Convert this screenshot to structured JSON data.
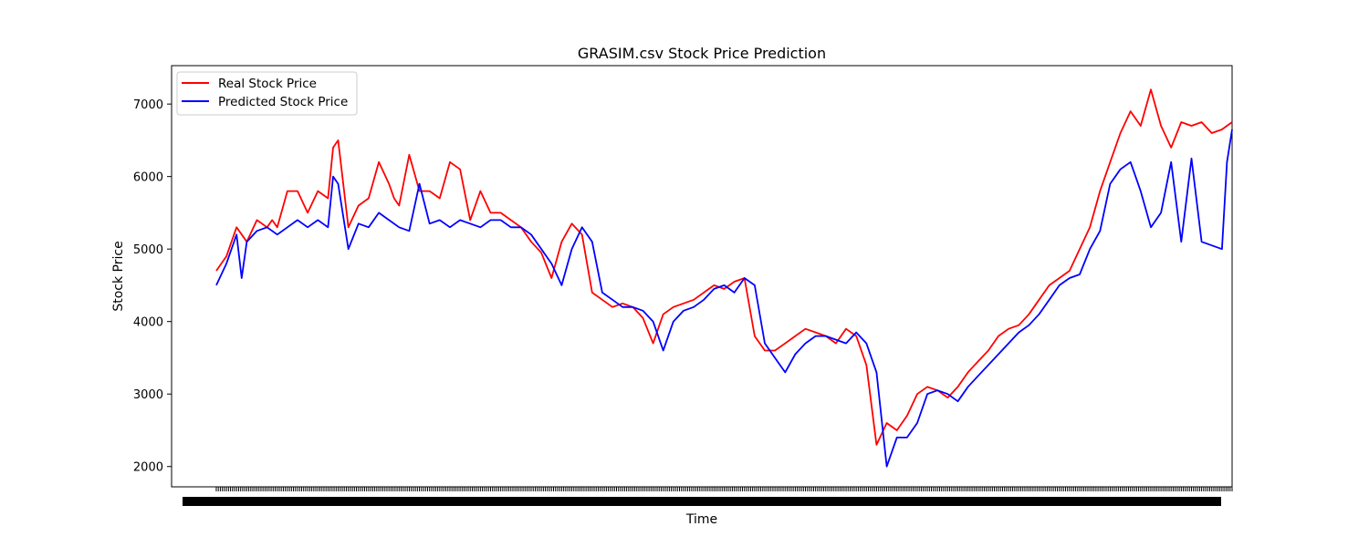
{
  "chart_data": {
    "type": "line",
    "title": "GRASIM.csv Stock Price Prediction",
    "xlabel": "Time",
    "ylabel": "Stock Price",
    "x_tick_labels_note": "",
    "ylim": [
      1720,
      7530
    ],
    "yticks": [
      2000,
      3000,
      4000,
      5000,
      6000,
      7000
    ],
    "xlim": [
      -44,
      1000
    ],
    "grid": false,
    "legend_position": "top-left",
    "colors": {
      "real": "#ff0000",
      "predicted": "#0000ff"
    },
    "series": [
      {
        "name": "Real Stock Price",
        "color": "#ff0000",
        "x": [
          0,
          10,
          20,
          30,
          40,
          50,
          55,
          60,
          70,
          80,
          90,
          100,
          110,
          115,
          120,
          130,
          140,
          150,
          160,
          170,
          175,
          180,
          190,
          200,
          210,
          220,
          230,
          240,
          250,
          260,
          270,
          280,
          290,
          300,
          310,
          320,
          330,
          340,
          350,
          360,
          370,
          380,
          390,
          400,
          410,
          420,
          430,
          440,
          450,
          460,
          470,
          480,
          490,
          500,
          510,
          520,
          530,
          540,
          550,
          560,
          570,
          580,
          590,
          600,
          610,
          620,
          630,
          640,
          650,
          660,
          670,
          680,
          690,
          700,
          710,
          720,
          730,
          740,
          750,
          760,
          770,
          780,
          790,
          800,
          810,
          820,
          830,
          840,
          850,
          860,
          870,
          880,
          890,
          900,
          910,
          920,
          930,
          940,
          950,
          960,
          970,
          980,
          990,
          995,
          1000
        ],
        "y": [
          4700,
          4900,
          5300,
          5100,
          5400,
          5300,
          5400,
          5300,
          5800,
          5800,
          5500,
          5800,
          5700,
          6400,
          6500,
          5300,
          5600,
          5700,
          6200,
          5900,
          5700,
          5600,
          6300,
          5800,
          5800,
          5700,
          6200,
          6100,
          5400,
          5800,
          5500,
          5500,
          5400,
          5300,
          5100,
          4950,
          4600,
          5100,
          5350,
          5200,
          4400,
          4300,
          4200,
          4250,
          4200,
          4050,
          3700,
          4100,
          4200,
          4250,
          4300,
          4400,
          4500,
          4450,
          4550,
          4600,
          3800,
          3600,
          3600,
          3700,
          3800,
          3900,
          3850,
          3800,
          3700,
          3900,
          3800,
          3400,
          2300,
          2600,
          2500,
          2700,
          3000,
          3100,
          3050,
          2950,
          3100,
          3300,
          3450,
          3600,
          3800,
          3900,
          3950,
          4100,
          4300,
          4500,
          4600,
          4700,
          5000,
          5300,
          5800,
          6200,
          6600,
          6900,
          6700,
          7200,
          6700,
          6400,
          6750,
          6700,
          6750,
          6600,
          6650,
          6700,
          6750
        ]
      },
      {
        "name": "Predicted Stock Price",
        "color": "#0000ff",
        "x": [
          0,
          10,
          20,
          25,
          30,
          40,
          50,
          60,
          70,
          80,
          90,
          100,
          110,
          115,
          120,
          130,
          140,
          150,
          160,
          170,
          180,
          190,
          200,
          210,
          220,
          230,
          240,
          250,
          260,
          270,
          280,
          290,
          300,
          310,
          320,
          330,
          340,
          350,
          360,
          370,
          380,
          390,
          400,
          410,
          420,
          430,
          440,
          450,
          460,
          470,
          480,
          490,
          500,
          510,
          520,
          530,
          540,
          550,
          560,
          570,
          580,
          590,
          600,
          610,
          620,
          630,
          640,
          650,
          660,
          670,
          680,
          690,
          700,
          710,
          720,
          730,
          740,
          750,
          760,
          770,
          780,
          790,
          800,
          810,
          820,
          830,
          840,
          850,
          860,
          870,
          880,
          890,
          900,
          910,
          920,
          930,
          940,
          950,
          960,
          970,
          980,
          990,
          995,
          1000
        ],
        "y": [
          4500,
          4800,
          5200,
          4600,
          5100,
          5250,
          5300,
          5200,
          5300,
          5400,
          5300,
          5400,
          5300,
          6000,
          5900,
          5000,
          5350,
          5300,
          5500,
          5400,
          5300,
          5250,
          5900,
          5350,
          5400,
          5300,
          5400,
          5350,
          5300,
          5400,
          5400,
          5300,
          5300,
          5200,
          5000,
          4800,
          4500,
          5000,
          5300,
          5100,
          4400,
          4300,
          4200,
          4200,
          4150,
          4000,
          3600,
          4000,
          4150,
          4200,
          4300,
          4450,
          4500,
          4400,
          4600,
          4500,
          3700,
          3500,
          3300,
          3550,
          3700,
          3800,
          3800,
          3750,
          3700,
          3850,
          3700,
          3300,
          2000,
          2400,
          2400,
          2600,
          3000,
          3050,
          3000,
          2900,
          3100,
          3250,
          3400,
          3550,
          3700,
          3850,
          3950,
          4100,
          4300,
          4500,
          4600,
          4650,
          5000,
          5250,
          5900,
          6100,
          6200,
          5800,
          5300,
          5500,
          6200,
          5100,
          6250,
          5100,
          5050,
          5000,
          6200,
          6650
        ]
      }
    ]
  }
}
